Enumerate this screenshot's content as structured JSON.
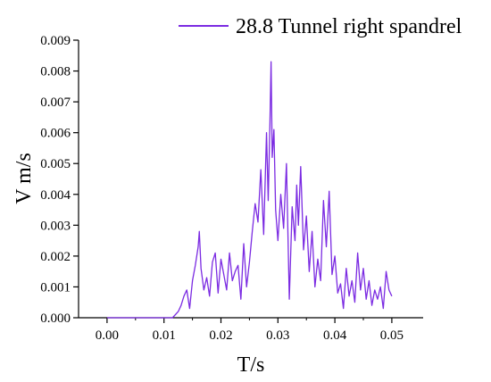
{
  "chart_data": {
    "type": "line",
    "title": "",
    "xlabel": "T/s",
    "ylabel": "V m/s",
    "xlim": [
      -0.005,
      0.0555
    ],
    "ylim": [
      0,
      0.009
    ],
    "xticks": [
      "0.00",
      "0.01",
      "0.02",
      "0.03",
      "0.04",
      "0.05"
    ],
    "yticks": [
      "0.000",
      "0.001",
      "0.002",
      "0.003",
      "0.004",
      "0.005",
      "0.006",
      "0.007",
      "0.008",
      "0.009"
    ],
    "grid": false,
    "legend_position": "top-right",
    "series": [
      {
        "name": "28.8 Tunnel right spandrel",
        "color": "#7b2be2",
        "x": [
          0.0,
          0.0115,
          0.0125,
          0.013,
          0.0135,
          0.014,
          0.0145,
          0.015,
          0.0155,
          0.016,
          0.0162,
          0.0165,
          0.017,
          0.0175,
          0.018,
          0.0185,
          0.019,
          0.0195,
          0.02,
          0.0205,
          0.021,
          0.0215,
          0.022,
          0.0225,
          0.023,
          0.0235,
          0.024,
          0.0245,
          0.025,
          0.0255,
          0.026,
          0.0265,
          0.027,
          0.0275,
          0.028,
          0.0283,
          0.0286,
          0.0288,
          0.029,
          0.0293,
          0.0296,
          0.03,
          0.0305,
          0.031,
          0.0315,
          0.032,
          0.0325,
          0.033,
          0.0333,
          0.0336,
          0.034,
          0.0345,
          0.035,
          0.0355,
          0.036,
          0.0365,
          0.037,
          0.0375,
          0.038,
          0.0385,
          0.039,
          0.0395,
          0.04,
          0.0405,
          0.041,
          0.0415,
          0.042,
          0.0425,
          0.043,
          0.0435,
          0.044,
          0.0445,
          0.045,
          0.0455,
          0.046,
          0.0465,
          0.047,
          0.0475,
          0.048,
          0.0485,
          0.049,
          0.0495,
          0.05
        ],
        "y": [
          0.0,
          0.0,
          0.0002,
          0.0004,
          0.0007,
          0.0009,
          0.0003,
          0.0012,
          0.0017,
          0.0023,
          0.0028,
          0.0016,
          0.0009,
          0.0013,
          0.0007,
          0.0018,
          0.0021,
          0.0008,
          0.0019,
          0.0014,
          0.0009,
          0.0021,
          0.0012,
          0.0015,
          0.0017,
          0.0006,
          0.0024,
          0.001,
          0.0018,
          0.0028,
          0.0037,
          0.0031,
          0.0048,
          0.0027,
          0.006,
          0.0038,
          0.0063,
          0.0083,
          0.0052,
          0.0061,
          0.0035,
          0.0025,
          0.004,
          0.0029,
          0.005,
          0.0006,
          0.0036,
          0.0025,
          0.0043,
          0.003,
          0.0049,
          0.0022,
          0.0033,
          0.0015,
          0.0028,
          0.001,
          0.0019,
          0.0012,
          0.0038,
          0.0023,
          0.0041,
          0.0014,
          0.002,
          0.0008,
          0.0011,
          0.0003,
          0.0016,
          0.0007,
          0.0012,
          0.0005,
          0.0021,
          0.0009,
          0.0016,
          0.0006,
          0.0012,
          0.0004,
          0.0009,
          0.0006,
          0.001,
          0.0003,
          0.0015,
          0.0009,
          0.0007
        ]
      }
    ]
  }
}
